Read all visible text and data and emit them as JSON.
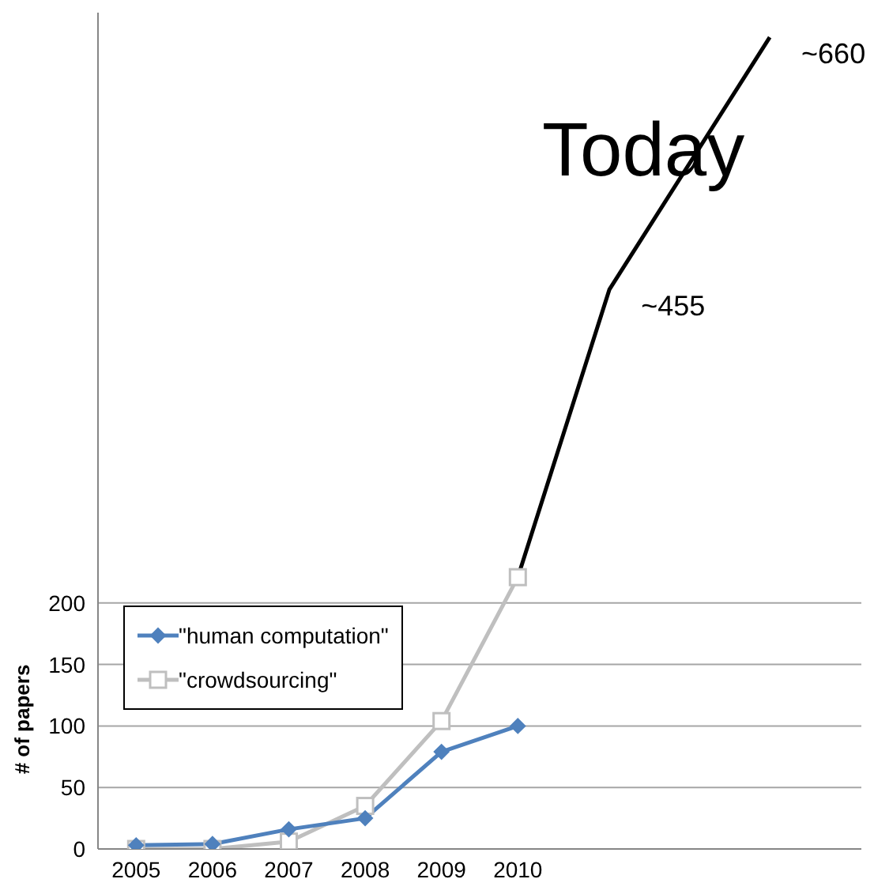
{
  "chart_data": {
    "type": "line",
    "ylabel": "# of papers",
    "xlim": [
      2004.5,
      2014.5
    ],
    "ylim": [
      0,
      680
    ],
    "xticks": [
      2005,
      2006,
      2007,
      2008,
      2009,
      2010
    ],
    "yticks": [
      0,
      50,
      100,
      150,
      200
    ],
    "grid": "y",
    "legend": "bottom left",
    "series": [
      {
        "name": "\"human computation\"",
        "color": "#4f81bd",
        "marker": "diamond",
        "x": [
          2005,
          2006,
          2007,
          2008,
          2009,
          2010
        ],
        "values": [
          3,
          4,
          16,
          25,
          79,
          100
        ]
      },
      {
        "name": "\"crowdsourcing\"",
        "color": "#bfbfbf",
        "marker": "square",
        "x": [
          2005,
          2006,
          2007,
          2008,
          2009,
          2010
        ],
        "values": [
          0,
          0,
          6,
          35,
          104,
          221
        ]
      },
      {
        "color": "#000000",
        "marker": "none",
        "x": [
          2010,
          2011.2,
          2013.3
        ],
        "values": [
          221,
          455,
          660
        ]
      }
    ],
    "annotations": [
      "Today",
      {
        "text": "~455",
        "x": 2011.2,
        "y": 455
      },
      {
        "text": "~660",
        "x": 2013.3,
        "y": 660
      }
    ]
  }
}
